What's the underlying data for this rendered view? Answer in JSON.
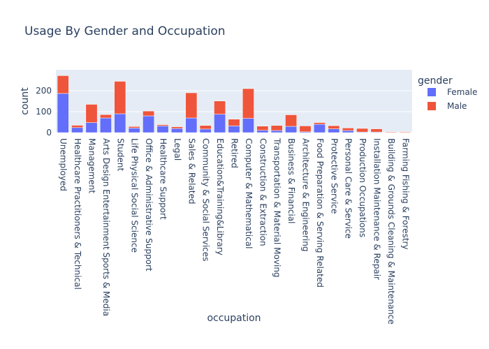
{
  "chart_data": {
    "type": "bar",
    "barmode": "stack",
    "title": "Usage By Gender and Occupation",
    "xlabel": "occupation",
    "ylabel": "count",
    "ylim": [
      0,
      300
    ],
    "yticks": [
      0,
      100,
      200
    ],
    "grid": true,
    "legend": {
      "title": "gender",
      "position": "right"
    },
    "categories": [
      "Unemployed",
      "Healthcare Practitioners & Technical",
      "Management",
      "Arts Design Entertainment Sports & Media",
      "Student",
      "Life Physical Social Science",
      "Office & Administrative Support",
      "Healthcare Support",
      "Legal",
      "Sales & Related",
      "Community & Social Services",
      "Education&Training&Library",
      "Retired",
      "Computer & Mathematical",
      "Construction & Extraction",
      "Transportation & Material Moving",
      "Business & Financial",
      "Architecture & Engineering",
      "Food Preparation & Serving Related",
      "Protective Service",
      "Personal Care & Service",
      "Production Occupations",
      "Installation Maintenance & Repair",
      "Building & Grounds Cleaning & Maintenance",
      "Farming Fishing & Forestry"
    ],
    "series": [
      {
        "name": "Female",
        "color": "#636efa",
        "values": [
          187,
          24,
          48,
          70,
          90,
          22,
          80,
          32,
          20,
          70,
          17,
          88,
          32,
          68,
          11,
          10,
          30,
          4,
          40,
          18,
          10,
          3,
          3,
          1,
          1
        ]
      },
      {
        "name": "Male",
        "color": "#ef553b",
        "values": [
          85,
          11,
          87,
          16,
          155,
          7,
          23,
          6,
          8,
          120,
          17,
          63,
          32,
          142,
          20,
          24,
          55,
          28,
          8,
          15,
          12,
          17,
          15,
          3,
          3
        ]
      }
    ]
  }
}
